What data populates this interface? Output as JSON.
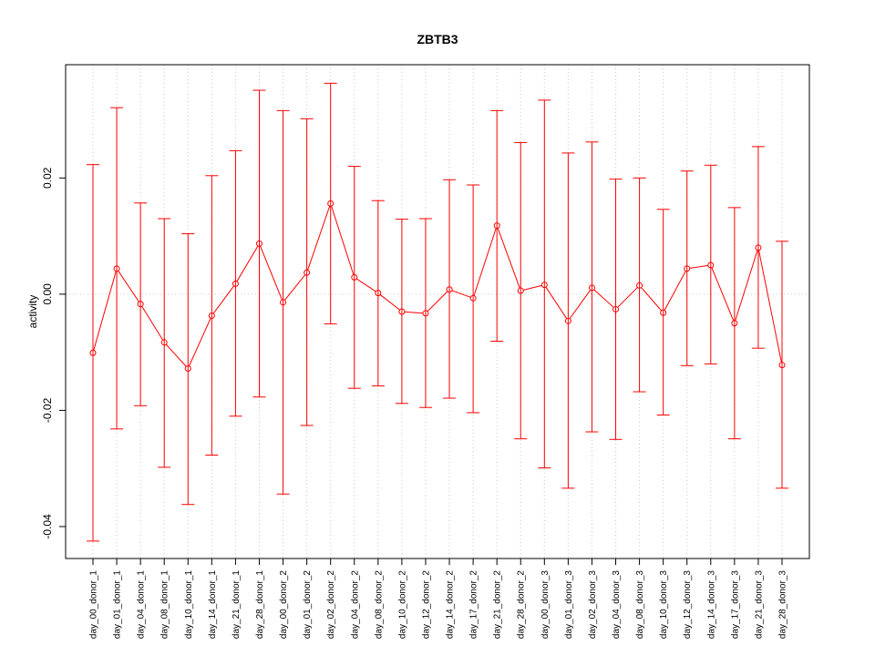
{
  "chart_data": {
    "type": "line",
    "title": "ZBTB3",
    "xlabel": "",
    "ylabel": "activity",
    "categories": [
      "day_00_donor_1",
      "day_01_donor_1",
      "day_04_donor_1",
      "day_08_donor_1",
      "day_10_donor_1",
      "day_14_donor_1",
      "day_21_donor_1",
      "day_28_donor_1",
      "day_00_donor_2",
      "day_01_donor_2",
      "day_02_donor_2",
      "day_04_donor_2",
      "day_08_donor_2",
      "day_10_donor_2",
      "day_12_donor_2",
      "day_14_donor_2",
      "day_17_donor_2",
      "day_21_donor_2",
      "day_28_donor_2",
      "day_00_donor_3",
      "day_01_donor_3",
      "day_02_donor_3",
      "day_04_donor_3",
      "day_08_donor_3",
      "day_10_donor_3",
      "day_12_donor_3",
      "day_14_donor_3",
      "day_17_donor_3",
      "day_21_donor_3",
      "day_28_donor_3"
    ],
    "values": [
      -0.0101,
      0.0044,
      -0.0017,
      -0.0083,
      -0.0128,
      -0.0037,
      0.0018,
      0.0087,
      -0.0014,
      0.0037,
      0.0156,
      0.0029,
      0.0002,
      -0.003,
      -0.0033,
      0.0008,
      -0.0007,
      0.0118,
      0.0006,
      0.0016,
      -0.0046,
      0.0011,
      -0.0026,
      0.0015,
      -0.0032,
      0.0044,
      0.005,
      -0.005,
      0.008,
      -0.0122
    ],
    "upper": [
      0.0223,
      0.0321,
      0.0157,
      0.013,
      0.0104,
      0.0204,
      0.0247,
      0.0351,
      0.0316,
      0.0302,
      0.0363,
      0.022,
      0.0161,
      0.0129,
      0.013,
      0.0197,
      0.0188,
      0.0316,
      0.0261,
      0.0334,
      0.0243,
      0.0262,
      0.0198,
      0.02,
      0.0146,
      0.0212,
      0.0222,
      0.0149,
      0.0254,
      0.0091
    ],
    "lower": [
      -0.0425,
      -0.0232,
      -0.0192,
      -0.0298,
      -0.0362,
      -0.0277,
      -0.021,
      -0.0177,
      -0.0344,
      -0.0226,
      -0.0051,
      -0.0162,
      -0.0158,
      -0.0188,
      -0.0195,
      -0.0179,
      -0.0204,
      -0.0081,
      -0.0249,
      -0.0299,
      -0.0334,
      -0.0237,
      -0.025,
      -0.0168,
      -0.0208,
      -0.0123,
      -0.012,
      -0.0249,
      -0.0093,
      -0.0334
    ],
    "ylim": [
      -0.0455,
      0.0395
    ],
    "yticks": [
      -0.04,
      -0.02,
      0.0,
      0.02
    ],
    "ytick_labels": [
      "-0.04",
      "-0.02",
      "0.00",
      "0.02"
    ],
    "grid": true,
    "colors": {
      "series": "#ff0000",
      "grid": "#c8c8c8",
      "axis": "#000000"
    }
  }
}
